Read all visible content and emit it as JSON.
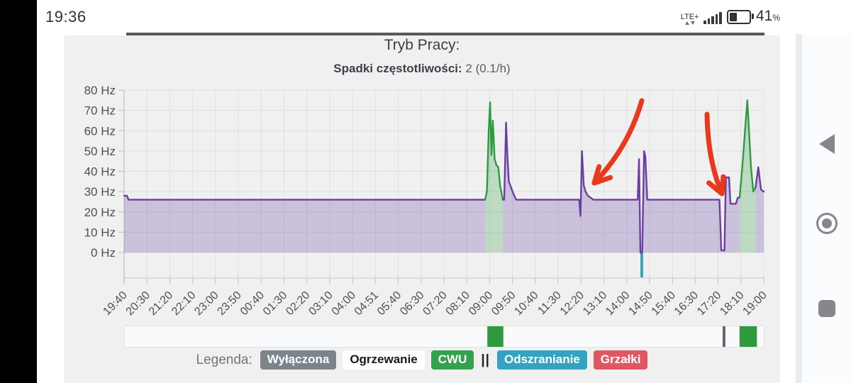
{
  "status_bar": {
    "time": "19:36",
    "network": "LTE+",
    "battery_percent": "41",
    "percent": "%"
  },
  "chart_data": {
    "type": "line",
    "title": "Tryb Pracy:",
    "subtitle_label": "Spadki częstotliwości:",
    "subtitle_value": " 2 (0.1/h)",
    "y_unit": "Hz",
    "yticks": [
      0,
      10,
      20,
      30,
      40,
      50,
      60,
      70,
      80
    ],
    "ylim": [
      0,
      80
    ],
    "x_total_minutes": 1400,
    "x_tick_labels": [
      "19:40",
      "20:30",
      "21:20",
      "22:10",
      "23:00",
      "23:50",
      "00:40",
      "01:30",
      "02:20",
      "03:10",
      "04:00",
      "04:51",
      "05:40",
      "06:30",
      "07:20",
      "08:10",
      "09:00",
      "09:50",
      "10:40",
      "11:30",
      "12:20",
      "13:10",
      "14:00",
      "14:50",
      "15:40",
      "16:30",
      "17:20",
      "18:10",
      "19:00"
    ],
    "grid": true,
    "line_colors": {
      "heating": "#6b3fa0",
      "cwu": "#2e9b3e"
    },
    "fill_colors": {
      "heating": "rgba(124,94,176,0.32)",
      "cwu": "rgba(88,170,100,0.32)"
    },
    "series_segments": [
      {
        "mode": "heating",
        "points": [
          [
            0,
            28
          ],
          [
            6,
            28
          ],
          [
            10,
            26
          ],
          [
            790,
            26
          ]
        ]
      },
      {
        "mode": "cwu",
        "points": [
          [
            790,
            26
          ],
          [
            794,
            30
          ],
          [
            798,
            60
          ],
          [
            801,
            74
          ],
          [
            804,
            48
          ],
          [
            807,
            65
          ],
          [
            811,
            46
          ],
          [
            815,
            43
          ],
          [
            819,
            42
          ],
          [
            823,
            33
          ],
          [
            829,
            26
          ]
        ]
      },
      {
        "mode": "heating",
        "points": [
          [
            829,
            26
          ],
          [
            832,
            26
          ],
          [
            836,
            64
          ],
          [
            839,
            47
          ],
          [
            842,
            35
          ],
          [
            847,
            32
          ],
          [
            852,
            29
          ],
          [
            858,
            26
          ],
          [
            996,
            26
          ],
          [
            999,
            18
          ],
          [
            1002,
            50
          ],
          [
            1006,
            33
          ],
          [
            1010,
            30
          ],
          [
            1015,
            28
          ],
          [
            1021,
            27
          ],
          [
            1027,
            26
          ],
          [
            1124,
            26
          ],
          [
            1127,
            46
          ],
          [
            1130,
            0
          ],
          [
            1134,
            0
          ],
          [
            1138,
            50
          ],
          [
            1141,
            47
          ],
          [
            1145,
            26
          ],
          [
            1303,
            26
          ],
          [
            1307,
            1
          ],
          [
            1314,
            1
          ],
          [
            1317,
            37
          ],
          [
            1324,
            37
          ],
          [
            1327,
            24
          ],
          [
            1339,
            24
          ],
          [
            1343,
            27
          ],
          [
            1347,
            27
          ]
        ]
      },
      {
        "mode": "cwu",
        "points": [
          [
            1347,
            27
          ],
          [
            1353,
            42
          ],
          [
            1364,
            75
          ],
          [
            1372,
            42
          ],
          [
            1377,
            30
          ],
          [
            1382,
            32
          ]
        ]
      },
      {
        "mode": "heating",
        "points": [
          [
            1382,
            32
          ],
          [
            1388,
            42
          ],
          [
            1394,
            31
          ],
          [
            1400,
            30
          ]
        ]
      }
    ],
    "defrost_bars": [
      {
        "start_min": 1130,
        "end_min": 1136,
        "color": "#35a3c0"
      }
    ],
    "mode_strip": [
      {
        "mode": "cwu",
        "start_min": 795,
        "end_min": 830,
        "color": "#2e9b3e"
      },
      {
        "mode": "off",
        "start_min": 1310,
        "end_min": 1316,
        "color": "#5f666d"
      },
      {
        "mode": "cwu",
        "start_min": 1347,
        "end_min": 1385,
        "color": "#2e9b3e"
      }
    ],
    "annotation_arrows": [
      {
        "from": [
          905,
          142
        ],
        "bend": [
          886,
          208
        ],
        "to": [
          838,
          258
        ],
        "color": "#e8391d"
      },
      {
        "from": [
          997,
          161
        ],
        "bend": [
          998,
          226
        ],
        "to": [
          1018,
          273
        ],
        "color": "#e8391d"
      }
    ]
  },
  "legend": {
    "label": "Legenda:",
    "items": [
      {
        "name": "wylaczona",
        "label": "Wyłączona",
        "bg": "#7c848b",
        "fg": "#ffffff"
      },
      {
        "name": "ogrzewanie",
        "label": "Ogrzewanie",
        "bg": "#ffffff",
        "fg": "#16191d"
      },
      {
        "name": "cwu",
        "label": "CWU",
        "bg": "#34a24c",
        "fg": "#ffffff"
      },
      {
        "name": "mode-separator",
        "label": "||",
        "separator": true
      },
      {
        "name": "odszranianie",
        "label": "Odszranianie",
        "bg": "#33a3c1",
        "fg": "#ffffff"
      },
      {
        "name": "grzalki",
        "label": "Grzałki",
        "bg": "#e05764",
        "fg": "#ffffff"
      }
    ]
  }
}
